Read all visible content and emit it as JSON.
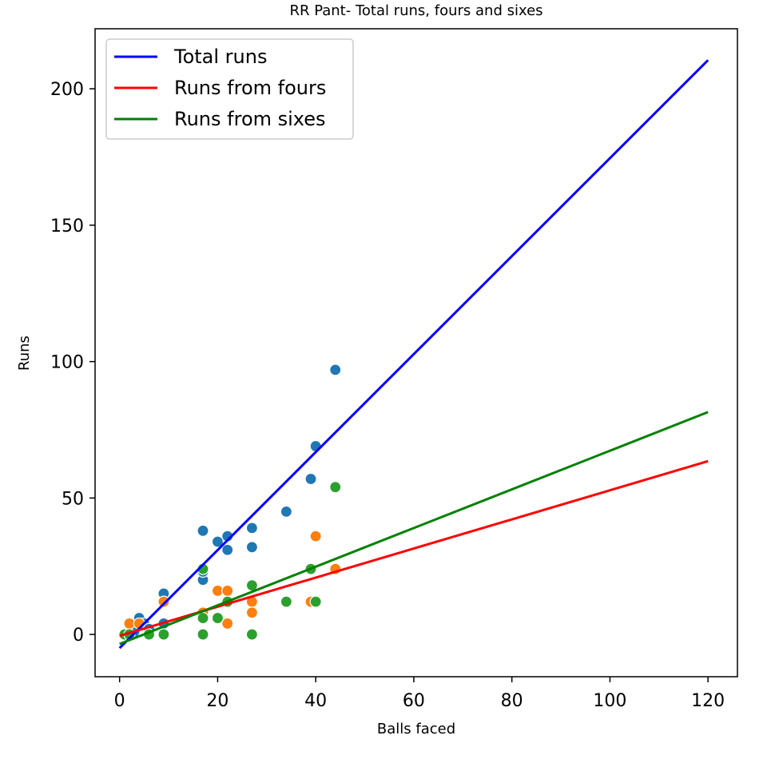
{
  "chart_data": {
    "type": "scatter",
    "title": "RR Pant- Total runs, fours and sixes",
    "xlabel": "Balls faced",
    "ylabel": "Runs",
    "xlim": [
      -5,
      126
    ],
    "ylim": [
      -15.5,
      222
    ],
    "xticks": [
      0,
      20,
      40,
      60,
      80,
      100,
      120
    ],
    "yticks": [
      0,
      50,
      100,
      150,
      200
    ],
    "grid": false,
    "legend_position": "top-left",
    "scatter_series": [
      {
        "color": "#1f77b4",
        "points": [
          [
            1,
            0
          ],
          [
            2,
            0
          ],
          [
            3,
            1
          ],
          [
            4,
            6
          ],
          [
            5,
            4
          ],
          [
            6,
            2
          ],
          [
            9,
            15
          ],
          [
            9,
            4
          ],
          [
            17,
            38
          ],
          [
            17,
            20
          ],
          [
            17,
            23
          ],
          [
            20,
            34
          ],
          [
            22,
            36
          ],
          [
            22,
            31
          ],
          [
            27,
            39
          ],
          [
            27,
            32
          ],
          [
            34,
            45
          ],
          [
            39,
            57
          ],
          [
            40,
            69
          ],
          [
            44,
            97
          ]
        ]
      },
      {
        "color": "#ff7f0e",
        "points": [
          [
            2,
            4
          ],
          [
            4,
            4
          ],
          [
            9,
            12
          ],
          [
            17,
            8
          ],
          [
            20,
            16
          ],
          [
            22,
            16
          ],
          [
            22,
            4
          ],
          [
            27,
            12
          ],
          [
            27,
            8
          ],
          [
            39,
            12
          ],
          [
            40,
            36
          ],
          [
            44,
            24
          ]
        ]
      },
      {
        "color": "#2ca02c",
        "points": [
          [
            1,
            0
          ],
          [
            2,
            0
          ],
          [
            6,
            0
          ],
          [
            9,
            0
          ],
          [
            17,
            0
          ],
          [
            17,
            6
          ],
          [
            17,
            24
          ],
          [
            20,
            6
          ],
          [
            22,
            12
          ],
          [
            27,
            18
          ],
          [
            27,
            0
          ],
          [
            34,
            12
          ],
          [
            39,
            24
          ],
          [
            40,
            12
          ],
          [
            44,
            54
          ]
        ]
      }
    ],
    "fit_lines": [
      {
        "name": "Total runs",
        "color": "#0000ff",
        "x": [
          0,
          120
        ],
        "y": [
          -5,
          210.5
        ]
      },
      {
        "name": "Runs from fours",
        "color": "#ff0000",
        "x": [
          0,
          120
        ],
        "y": [
          -0.5,
          63.5
        ]
      },
      {
        "name": "Runs from sixes",
        "color": "#008000",
        "x": [
          0,
          120
        ],
        "y": [
          -3.5,
          81.5
        ]
      }
    ]
  }
}
